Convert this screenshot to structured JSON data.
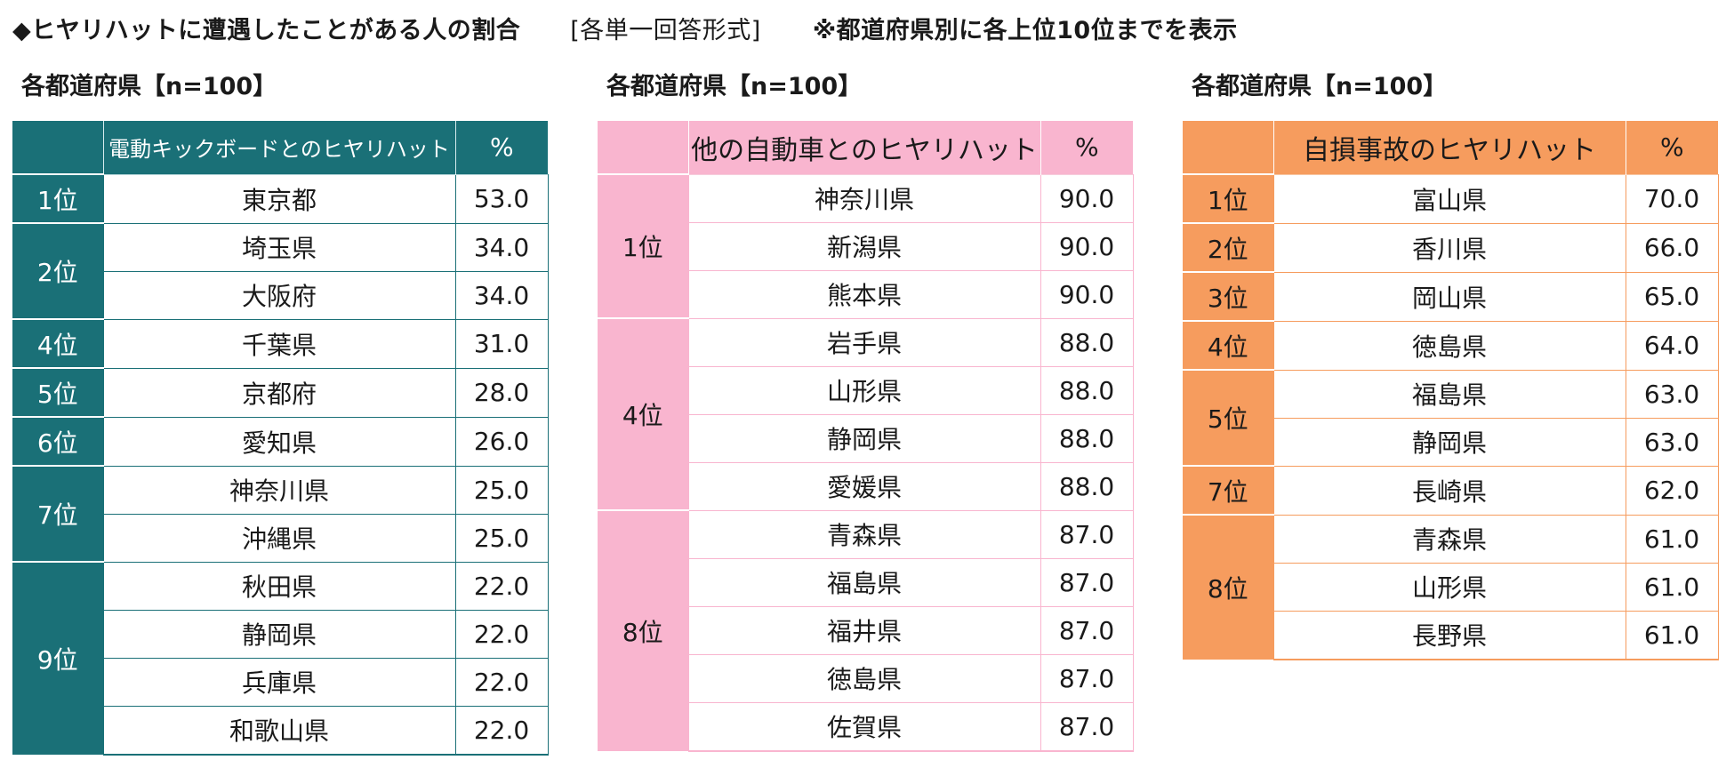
{
  "header": {
    "title": "◆ヒヤリハットに遭遇したことがある人の割合",
    "format": "[各単一回答形式]",
    "note": "※都道府県別に各上位10位までを表示"
  },
  "panels": [
    {
      "label": "各都道府県【n=100】",
      "col_item": "電動キックボードとのヒヤリハット",
      "col_pct": "%",
      "theme_color": "#1a7077",
      "groups": [
        {
          "rank": "1位",
          "rows": [
            {
              "pref": "東京都",
              "val": "53.0"
            }
          ]
        },
        {
          "rank": "2位",
          "rows": [
            {
              "pref": "埼玉県",
              "val": "34.0"
            },
            {
              "pref": "大阪府",
              "val": "34.0"
            }
          ]
        },
        {
          "rank": "4位",
          "rows": [
            {
              "pref": "千葉県",
              "val": "31.0"
            }
          ]
        },
        {
          "rank": "5位",
          "rows": [
            {
              "pref": "京都府",
              "val": "28.0"
            }
          ]
        },
        {
          "rank": "6位",
          "rows": [
            {
              "pref": "愛知県",
              "val": "26.0"
            }
          ]
        },
        {
          "rank": "7位",
          "rows": [
            {
              "pref": "神奈川県",
              "val": "25.0"
            },
            {
              "pref": "沖縄県",
              "val": "25.0"
            }
          ]
        },
        {
          "rank": "9位",
          "rows": [
            {
              "pref": "秋田県",
              "val": "22.0"
            },
            {
              "pref": "静岡県",
              "val": "22.0"
            },
            {
              "pref": "兵庫県",
              "val": "22.0"
            },
            {
              "pref": "和歌山県",
              "val": "22.0"
            }
          ]
        }
      ]
    },
    {
      "label": "各都道府県【n=100】",
      "col_item": "他の自動車とのヒヤリハット",
      "col_pct": "%",
      "theme_color": "#f9b5cf",
      "groups": [
        {
          "rank": "1位",
          "rows": [
            {
              "pref": "神奈川県",
              "val": "90.0"
            },
            {
              "pref": "新潟県",
              "val": "90.0"
            },
            {
              "pref": "熊本県",
              "val": "90.0"
            }
          ]
        },
        {
          "rank": "4位",
          "rows": [
            {
              "pref": "岩手県",
              "val": "88.0"
            },
            {
              "pref": "山形県",
              "val": "88.0"
            },
            {
              "pref": "静岡県",
              "val": "88.0"
            },
            {
              "pref": "愛媛県",
              "val": "88.0"
            }
          ]
        },
        {
          "rank": "8位",
          "rows": [
            {
              "pref": "青森県",
              "val": "87.0"
            },
            {
              "pref": "福島県",
              "val": "87.0"
            },
            {
              "pref": "福井県",
              "val": "87.0"
            },
            {
              "pref": "徳島県",
              "val": "87.0"
            },
            {
              "pref": "佐賀県",
              "val": "87.0"
            }
          ]
        }
      ]
    },
    {
      "label": "各都道府県【n=100】",
      "col_item": "自損事故のヒヤリハット",
      "col_pct": "%",
      "theme_color": "#f69c5e",
      "groups": [
        {
          "rank": "1位",
          "rows": [
            {
              "pref": "富山県",
              "val": "70.0"
            }
          ]
        },
        {
          "rank": "2位",
          "rows": [
            {
              "pref": "香川県",
              "val": "66.0"
            }
          ]
        },
        {
          "rank": "3位",
          "rows": [
            {
              "pref": "岡山県",
              "val": "65.0"
            }
          ]
        },
        {
          "rank": "4位",
          "rows": [
            {
              "pref": "徳島県",
              "val": "64.0"
            }
          ]
        },
        {
          "rank": "5位",
          "rows": [
            {
              "pref": "福島県",
              "val": "63.0"
            },
            {
              "pref": "静岡県",
              "val": "63.0"
            }
          ]
        },
        {
          "rank": "7位",
          "rows": [
            {
              "pref": "長崎県",
              "val": "62.0"
            }
          ]
        },
        {
          "rank": "8位",
          "rows": [
            {
              "pref": "青森県",
              "val": "61.0"
            },
            {
              "pref": "山形県",
              "val": "61.0"
            },
            {
              "pref": "長野県",
              "val": "61.0"
            }
          ]
        }
      ]
    }
  ]
}
